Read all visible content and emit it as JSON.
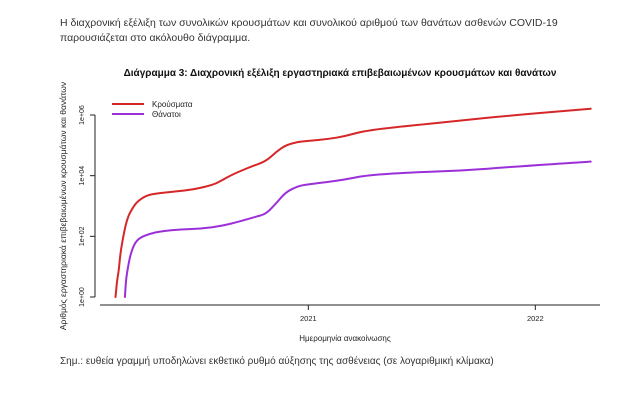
{
  "intro_text": "Η διαχρονική εξέλιξη των συνολικών κρουσμάτων και συνολικού αριθμού των θανάτων ασθενών COVID-19 παρουσιάζεται στο ακόλουθο διάγραμμα.",
  "note_text": "Σημ.: ευθεία γραμμή υποδηλώνει εκθετικό ρυθμό αύξησης της ασθένειας (σε λογαριθμική κλίμακα)",
  "chart_data": {
    "type": "line",
    "title": "Διάγραμμα 3: Διαχρονική εξέλιξη εργαστηριακά επιβεβαιωμένων κρουσμάτων και θανάτων",
    "xlabel": "Ημερομηνία ανακοίνωσης",
    "ylabel": "Αριθμός εργαστηριακά επιβεβαιωμένων κρουσμάτων και θανάτων",
    "x_scale": "date",
    "xlim": [
      "2020-02-01",
      "2022-04-15"
    ],
    "x_ticks": [
      {
        "value": "2021-01-01",
        "label": "2021"
      },
      {
        "value": "2022-01-01",
        "label": "2022"
      }
    ],
    "y_scale": "log10",
    "ylim": [
      1,
      1000000
    ],
    "y_ticks": [
      {
        "value": 1,
        "label": "1e+00"
      },
      {
        "value": 100,
        "label": "1e+02"
      },
      {
        "value": 10000,
        "label": "1e+04"
      },
      {
        "value": 1000000,
        "label": "1e+06"
      }
    ],
    "legend_position": "top-left",
    "grid": false,
    "series": [
      {
        "name": "Κρούσματα",
        "color": "#d62728",
        "points": [
          [
            "2020-02-26",
            1
          ],
          [
            "2020-02-28",
            3
          ],
          [
            "2020-03-02",
            7
          ],
          [
            "2020-03-05",
            30
          ],
          [
            "2020-03-09",
            90
          ],
          [
            "2020-03-13",
            230
          ],
          [
            "2020-03-18",
            500
          ],
          [
            "2020-03-25",
            900
          ],
          [
            "2020-04-01",
            1400
          ],
          [
            "2020-04-15",
            2200
          ],
          [
            "2020-05-01",
            2600
          ],
          [
            "2020-06-01",
            3000
          ],
          [
            "2020-07-01",
            3500
          ],
          [
            "2020-08-01",
            5000
          ],
          [
            "2020-08-15",
            7000
          ],
          [
            "2020-09-01",
            11000
          ],
          [
            "2020-10-01",
            20000
          ],
          [
            "2020-10-25",
            30000
          ],
          [
            "2020-11-10",
            60000
          ],
          [
            "2020-11-25",
            100000
          ],
          [
            "2020-12-15",
            130000
          ],
          [
            "2021-01-01",
            140000
          ],
          [
            "2021-02-01",
            160000
          ],
          [
            "2021-03-01",
            200000
          ],
          [
            "2021-04-01",
            300000
          ],
          [
            "2021-06-01",
            420000
          ],
          [
            "2021-09-01",
            650000
          ],
          [
            "2021-12-01",
            1000000
          ],
          [
            "2022-03-31",
            1600000
          ]
        ]
      },
      {
        "name": "Θάνατοι",
        "color": "#9b30d9",
        "points": [
          [
            "2020-03-12",
            1
          ],
          [
            "2020-03-14",
            4
          ],
          [
            "2020-03-17",
            10
          ],
          [
            "2020-03-22",
            30
          ],
          [
            "2020-03-28",
            60
          ],
          [
            "2020-04-05",
            90
          ],
          [
            "2020-04-20",
            120
          ],
          [
            "2020-05-10",
            150
          ],
          [
            "2020-06-10",
            170
          ],
          [
            "2020-07-15",
            180
          ],
          [
            "2020-08-15",
            220
          ],
          [
            "2020-09-10",
            300
          ],
          [
            "2020-10-10",
            450
          ],
          [
            "2020-10-25",
            550
          ],
          [
            "2020-11-10",
            1200
          ],
          [
            "2020-11-25",
            2800
          ],
          [
            "2020-12-15",
            4500
          ],
          [
            "2021-01-01",
            5200
          ],
          [
            "2021-02-01",
            6200
          ],
          [
            "2021-03-01",
            7500
          ],
          [
            "2021-04-01",
            10000
          ],
          [
            "2021-06-01",
            12500
          ],
          [
            "2021-09-01",
            14500
          ],
          [
            "2021-12-01",
            20000
          ],
          [
            "2022-03-31",
            29000
          ]
        ]
      }
    ]
  }
}
